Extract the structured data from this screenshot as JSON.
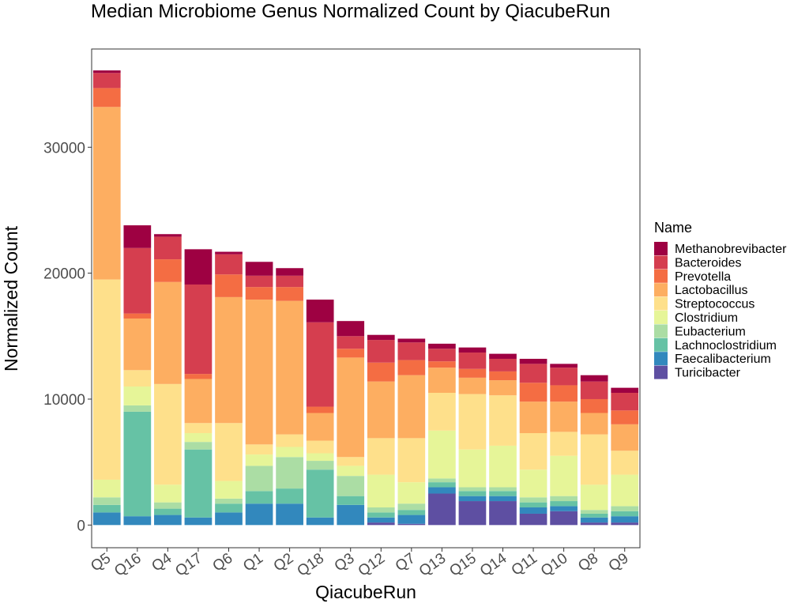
{
  "chart_data": {
    "type": "bar",
    "stacked": true,
    "title": "Median Microbiome Genus Normalized Count by QiacubeRun",
    "xlabel": "QiacubeRun",
    "ylabel": "Normalized Count",
    "ylim": [
      -1800,
      37800
    ],
    "yticks": [
      0,
      10000,
      20000,
      30000
    ],
    "ytick_labels": [
      "0",
      "10000",
      "20000",
      "30000"
    ],
    "categories": [
      "Q5",
      "Q16",
      "Q4",
      "Q17",
      "Q6",
      "Q1",
      "Q2",
      "Q18",
      "Q3",
      "Q12",
      "Q7",
      "Q13",
      "Q15",
      "Q14",
      "Q11",
      "Q10",
      "Q8",
      "Q9"
    ],
    "legend_title": "Name",
    "legend_position": "right",
    "series": [
      {
        "name": "Methanobrevibacter",
        "color": "#9E0142",
        "values": [
          200,
          1800,
          200,
          2800,
          200,
          1100,
          600,
          1800,
          1200,
          400,
          300,
          400,
          400,
          400,
          400,
          300,
          500,
          400
        ]
      },
      {
        "name": "Bacteroides",
        "color": "#D53E4F",
        "values": [
          1200,
          5200,
          1800,
          7100,
          1600,
          900,
          900,
          6700,
          1000,
          1800,
          1400,
          1000,
          1300,
          1000,
          1500,
          1400,
          1400,
          1400
        ]
      },
      {
        "name": "Prevotella",
        "color": "#F46D43",
        "values": [
          1500,
          400,
          1800,
          400,
          1800,
          1000,
          1100,
          500,
          700,
          1500,
          1200,
          500,
          700,
          700,
          1500,
          1300,
          1100,
          1100
        ]
      },
      {
        "name": "Lactobacillus",
        "color": "#FDAE61",
        "values": [
          13700,
          4100,
          8100,
          3500,
          10000,
          11500,
          10600,
          2200,
          7900,
          4500,
          5000,
          2000,
          1300,
          1200,
          2500,
          2400,
          1700,
          2100
        ]
      },
      {
        "name": "Streptococcus",
        "color": "#FEE08B",
        "values": [
          15900,
          1300,
          8000,
          800,
          4600,
          800,
          1000,
          1000,
          700,
          2900,
          3500,
          3000,
          4400,
          4000,
          2900,
          1900,
          4000,
          1900
        ]
      },
      {
        "name": "Clostridium",
        "color": "#E6F598",
        "values": [
          1400,
          1500,
          1400,
          700,
          1400,
          900,
          800,
          600,
          800,
          2600,
          1700,
          3800,
          3000,
          3300,
          2200,
          3200,
          2000,
          2500
        ]
      },
      {
        "name": "Eubacterium",
        "color": "#ABDDA4",
        "values": [
          600,
          500,
          500,
          600,
          400,
          2000,
          2500,
          700,
          1600,
          400,
          500,
          300,
          300,
          300,
          400,
          400,
          300,
          400
        ]
      },
      {
        "name": "Lachnoclostridium",
        "color": "#66C2A5",
        "values": [
          600,
          8300,
          500,
          5400,
          700,
          1000,
          1200,
          3800,
          700,
          400,
          400,
          400,
          400,
          400,
          400,
          400,
          300,
          400
        ]
      },
      {
        "name": "Faecalibacterium",
        "color": "#3288BD",
        "values": [
          1000,
          700,
          800,
          600,
          1000,
          1700,
          1700,
          600,
          1600,
          400,
          700,
          500,
          400,
          400,
          500,
          400,
          400,
          500
        ]
      },
      {
        "name": "Turicibacter",
        "color": "#5E4FA2",
        "values": [
          0,
          0,
          0,
          0,
          0,
          0,
          0,
          0,
          0,
          200,
          100,
          2500,
          1900,
          1900,
          900,
          1100,
          200,
          200
        ]
      }
    ]
  }
}
